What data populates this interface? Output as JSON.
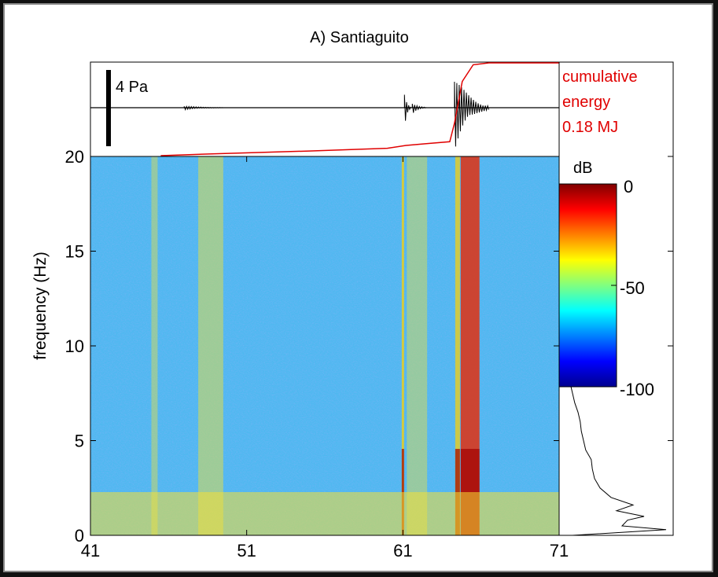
{
  "chart_data": {
    "type": "heatmap",
    "title": "A) Santiaguito",
    "ylabel": "frequency (Hz)",
    "xlabel": "",
    "xlim": [
      41,
      71
    ],
    "ylim": [
      0,
      20
    ],
    "x_ticks": [
      "41",
      "51",
      "61",
      "71"
    ],
    "y_ticks": [
      "0",
      "5",
      "10",
      "15",
      "20"
    ],
    "colorbar": {
      "label": "dB",
      "range": [
        -100,
        0
      ],
      "ticks": [
        "0",
        "-50",
        "-100"
      ],
      "colormap": "jet"
    },
    "waveform": {
      "scale_label": "4 Pa",
      "events": [
        {
          "start": 47,
          "end": 49.5,
          "amplitude": 0.05
        },
        {
          "start": 61.1,
          "end": 61.5,
          "amplitude": 0.5
        },
        {
          "start": 61.6,
          "end": 62.5,
          "amplitude": 0.15
        },
        {
          "start": 64.3,
          "end": 66.5,
          "amplitude": 1.0
        }
      ]
    },
    "cumulative_energy": {
      "label_lines": [
        "cumulative",
        "energy",
        "0.18 MJ"
      ],
      "color": "#e00000",
      "points": [
        [
          45.5,
          0.0
        ],
        [
          49,
          0.02
        ],
        [
          55,
          0.05
        ],
        [
          60,
          0.08
        ],
        [
          61.2,
          0.11
        ],
        [
          62.5,
          0.13
        ],
        [
          64.0,
          0.15
        ],
        [
          64.3,
          0.35
        ],
        [
          64.8,
          0.8
        ],
        [
          65.5,
          0.98
        ],
        [
          66.5,
          1.0
        ],
        [
          71,
          1.0
        ]
      ]
    },
    "spectral_bands": [
      {
        "center": 45.1,
        "width": 0.4,
        "level": 0.18
      },
      {
        "center": 48.7,
        "width": 1.6,
        "level": 0.25
      },
      {
        "center": 61.0,
        "width": 0.15,
        "level": 0.5
      },
      {
        "center": 61.9,
        "width": 1.3,
        "level": 0.2
      },
      {
        "center": 65.3,
        "width": 1.2,
        "level": 0.6
      },
      {
        "center": 64.5,
        "width": 0.3,
        "level": 0.45
      }
    ],
    "spectrum_profile": {
      "freq_hz": [
        0,
        0.3,
        0.5,
        0.8,
        1.0,
        1.3,
        1.6,
        2.0,
        2.5,
        3.0,
        3.5,
        4.0,
        4.5,
        5.0,
        5.5,
        6.0,
        6.5,
        7.0,
        7.5,
        8.0
      ],
      "relative_level": [
        0.1,
        0.95,
        0.55,
        0.6,
        0.75,
        0.5,
        0.65,
        0.45,
        0.35,
        0.3,
        0.28,
        0.27,
        0.22,
        0.2,
        0.18,
        0.17,
        0.15,
        0.12,
        0.1,
        0.08
      ]
    }
  }
}
